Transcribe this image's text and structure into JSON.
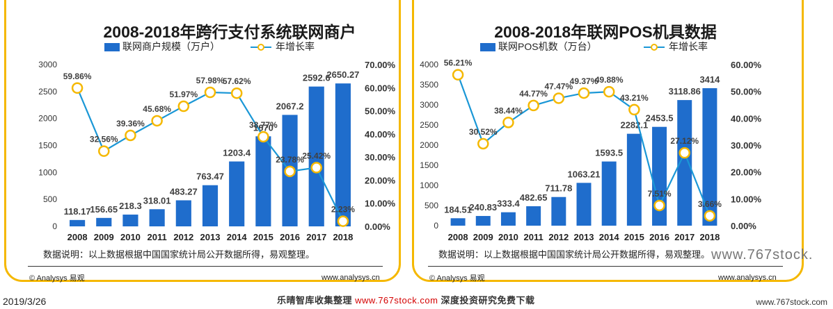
{
  "chart_data": [
    {
      "type": "bar",
      "title": "2008-2018年跨行支付系统联网商户",
      "categories": [
        "2008",
        "2009",
        "2010",
        "2011",
        "2012",
        "2013",
        "2014",
        "2015",
        "2016",
        "2017",
        "2018"
      ],
      "series": [
        {
          "name": "联网商户规模（万户）",
          "type": "bar",
          "axis": "left",
          "values": [
            118.17,
            156.65,
            218.3,
            318.01,
            483.27,
            763.47,
            1203.4,
            1670,
            2067.2,
            2592.6,
            2650.27
          ],
          "labels": [
            "118.17",
            "156.65",
            "218.3",
            "318.01",
            "483.27",
            "763.47",
            "1203.4",
            "1670",
            "2067.2",
            "2592.6",
            "2650.27"
          ]
        },
        {
          "name": "年增长率",
          "type": "line",
          "axis": "right",
          "values": [
            59.86,
            32.56,
            39.36,
            45.68,
            51.97,
            57.98,
            57.62,
            38.77,
            23.78,
            25.42,
            2.23
          ],
          "labels": [
            "59.86%",
            "32.56%",
            "39.36%",
            "45.68%",
            "51.97%",
            "57.98%",
            "57.62%",
            "38.77%",
            "23.78%",
            "25.42%",
            "2.23%"
          ]
        }
      ],
      "yleft": {
        "min": 0,
        "max": 3000,
        "ticks": [
          "0",
          "500",
          "1000",
          "1500",
          "2000",
          "2500",
          "3000"
        ]
      },
      "yright": {
        "min": 0,
        "max": 70,
        "ticks": [
          "0.00%",
          "10.00%",
          "20.00%",
          "30.00%",
          "40.00%",
          "50.00%",
          "60.00%",
          "70.00%"
        ]
      },
      "note": "数据说明：以上数据根据中国国家统计局公开数据所得，易观整理。",
      "source": "© Analysys 易观",
      "site": "www.analysys.cn"
    },
    {
      "type": "bar",
      "title": "2008-2018年联网POS机具数据",
      "categories": [
        "2008",
        "2009",
        "2010",
        "2011",
        "2012",
        "2013",
        "2014",
        "2015",
        "2016",
        "2017",
        "2018"
      ],
      "series": [
        {
          "name": "联网POS机数（万台）",
          "type": "bar",
          "axis": "left",
          "values": [
            184.51,
            240.83,
            333.4,
            482.65,
            711.78,
            1063.21,
            1593.5,
            2282.1,
            2453.5,
            3118.86,
            3414
          ],
          "labels": [
            "184.51",
            "240.83",
            "333.4",
            "482.65",
            "711.78",
            "1063.21",
            "1593.5",
            "2282.1",
            "2453.5",
            "3118.86",
            "3414"
          ]
        },
        {
          "name": "年增长率",
          "type": "line",
          "axis": "right",
          "values": [
            56.21,
            30.52,
            38.44,
            44.77,
            47.47,
            49.37,
            49.88,
            43.21,
            7.51,
            27.12,
            3.66
          ],
          "labels": [
            "56.21%",
            "30.52%",
            "38.44%",
            "44.77%",
            "47.47%",
            "49.37%",
            "49.88%",
            "43.21%",
            "7.51%",
            "27.12%",
            "3.66%"
          ]
        }
      ],
      "yleft": {
        "min": 0,
        "max": 4000,
        "ticks": [
          "0",
          "500",
          "1000",
          "1500",
          "2000",
          "2500",
          "3000",
          "3500",
          "4000"
        ]
      },
      "yright": {
        "min": 0,
        "max": 60,
        "ticks": [
          "0.00%",
          "10.00%",
          "20.00%",
          "30.00%",
          "40.00%",
          "50.00%",
          "60.00%"
        ]
      },
      "note": "数据说明：以上数据根据中国国家统计局公开数据所得，易观整理。",
      "source": "© Analysys 易观",
      "site": "www.analysys.cn"
    }
  ],
  "footer": {
    "date": "2019/3/26",
    "banner_a": "乐晴智库收集整理",
    "banner_url": "www.767stock.com",
    "banner_b": "深度投资研究免费下载",
    "site": "www.767stock.com",
    "watermark": "www.767stock."
  },
  "colors": {
    "bar": "#1f6dcc",
    "line": "#1a97d6",
    "marker_fill": "#ffffff",
    "marker_stroke": "#f5b800",
    "frame": "#f5b800"
  }
}
